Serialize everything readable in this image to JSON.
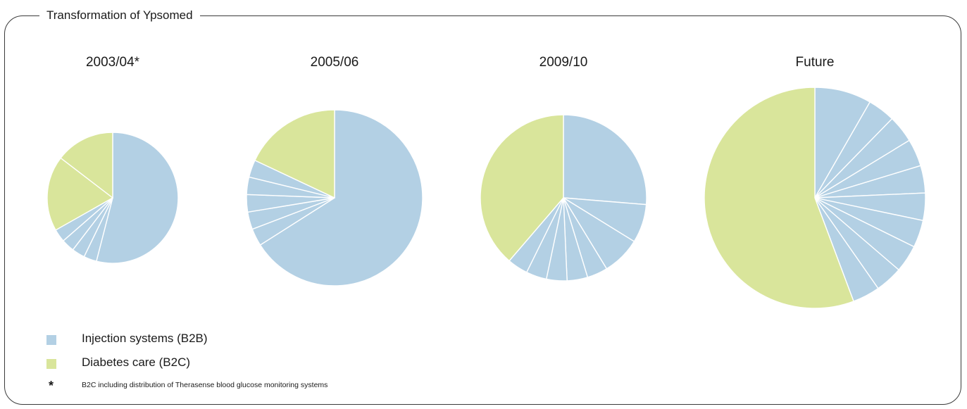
{
  "title": "Transformation of Ypsomed",
  "colors": {
    "b2b": "#b3d0e4",
    "b2c": "#d9e59b"
  },
  "legend": {
    "b2b": "Injection systems (B2B)",
    "b2c": "Diabetes care (B2C)"
  },
  "footnote": {
    "mark": "*",
    "text": "B2C including distribution of Therasense blood glucose monitoring systems"
  },
  "chart_data": [
    {
      "type": "pie",
      "title": "2003/04*",
      "slices": [
        {
          "category": "b2b",
          "value": 54.0
        },
        {
          "category": "b2b",
          "value": 3.2
        },
        {
          "category": "b2b",
          "value": 3.2
        },
        {
          "category": "b2b",
          "value": 3.2
        },
        {
          "category": "b2b",
          "value": 3.2
        },
        {
          "category": "b2c",
          "value": 18.6
        },
        {
          "category": "b2c",
          "value": 14.6
        }
      ]
    },
    {
      "type": "pie",
      "title": "2005/06",
      "slices": [
        {
          "category": "b2b",
          "value": 66.0
        },
        {
          "category": "b2b",
          "value": 3.2
        },
        {
          "category": "b2b",
          "value": 3.2
        },
        {
          "category": "b2b",
          "value": 3.2
        },
        {
          "category": "b2b",
          "value": 3.2
        },
        {
          "category": "b2b",
          "value": 3.2
        },
        {
          "category": "b2c",
          "value": 18.0
        }
      ]
    },
    {
      "type": "pie",
      "title": "2009/10",
      "slices": [
        {
          "category": "b2b",
          "value": 26.3
        },
        {
          "category": "b2b",
          "value": 7.5
        },
        {
          "category": "b2b",
          "value": 7.5
        },
        {
          "category": "b2b",
          "value": 4.0
        },
        {
          "category": "b2b",
          "value": 4.0
        },
        {
          "category": "b2b",
          "value": 4.0
        },
        {
          "category": "b2b",
          "value": 4.0
        },
        {
          "category": "b2b",
          "value": 4.0
        },
        {
          "category": "b2c",
          "value": 38.7
        }
      ]
    },
    {
      "type": "pie",
      "title": "Future",
      "slices": [
        {
          "category": "b2b",
          "value": 8.3
        },
        {
          "category": "b2b",
          "value": 4.0
        },
        {
          "category": "b2b",
          "value": 4.0
        },
        {
          "category": "b2b",
          "value": 4.0
        },
        {
          "category": "b2b",
          "value": 4.0
        },
        {
          "category": "b2b",
          "value": 4.0
        },
        {
          "category": "b2b",
          "value": 4.0
        },
        {
          "category": "b2b",
          "value": 4.0
        },
        {
          "category": "b2b",
          "value": 4.0
        },
        {
          "category": "b2b",
          "value": 4.0
        },
        {
          "category": "b2c",
          "value": 55.7
        }
      ]
    }
  ]
}
